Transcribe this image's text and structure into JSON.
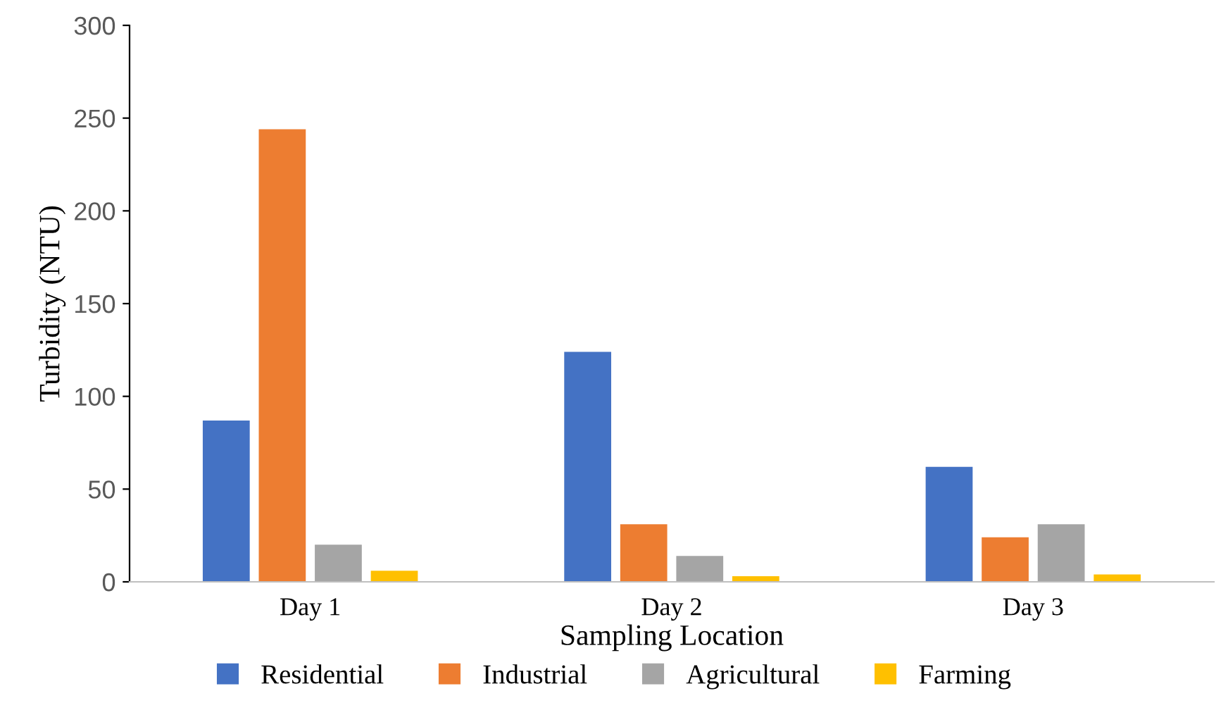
{
  "chart_data": {
    "type": "bar",
    "xlabel": "Sampling Location",
    "ylabel": "Turbidity (NTU)",
    "categories": [
      "Day 1",
      "Day 2",
      "Day 3"
    ],
    "series": [
      {
        "name": "Residential",
        "color": "#4472c4",
        "values": [
          87,
          124,
          62
        ]
      },
      {
        "name": "Industrial",
        "color": "#ed7d31",
        "values": [
          244,
          31,
          24
        ]
      },
      {
        "name": "Agricultural",
        "color": "#a5a5a5",
        "values": [
          20,
          14,
          31
        ]
      },
      {
        "name": "Farming",
        "color": "#ffc000",
        "values": [
          6,
          3,
          4
        ]
      }
    ],
    "ylim": [
      0,
      300
    ],
    "yticks": [
      0,
      50,
      100,
      150,
      200,
      250,
      300
    ],
    "grid": false,
    "legend": "bottom"
  }
}
